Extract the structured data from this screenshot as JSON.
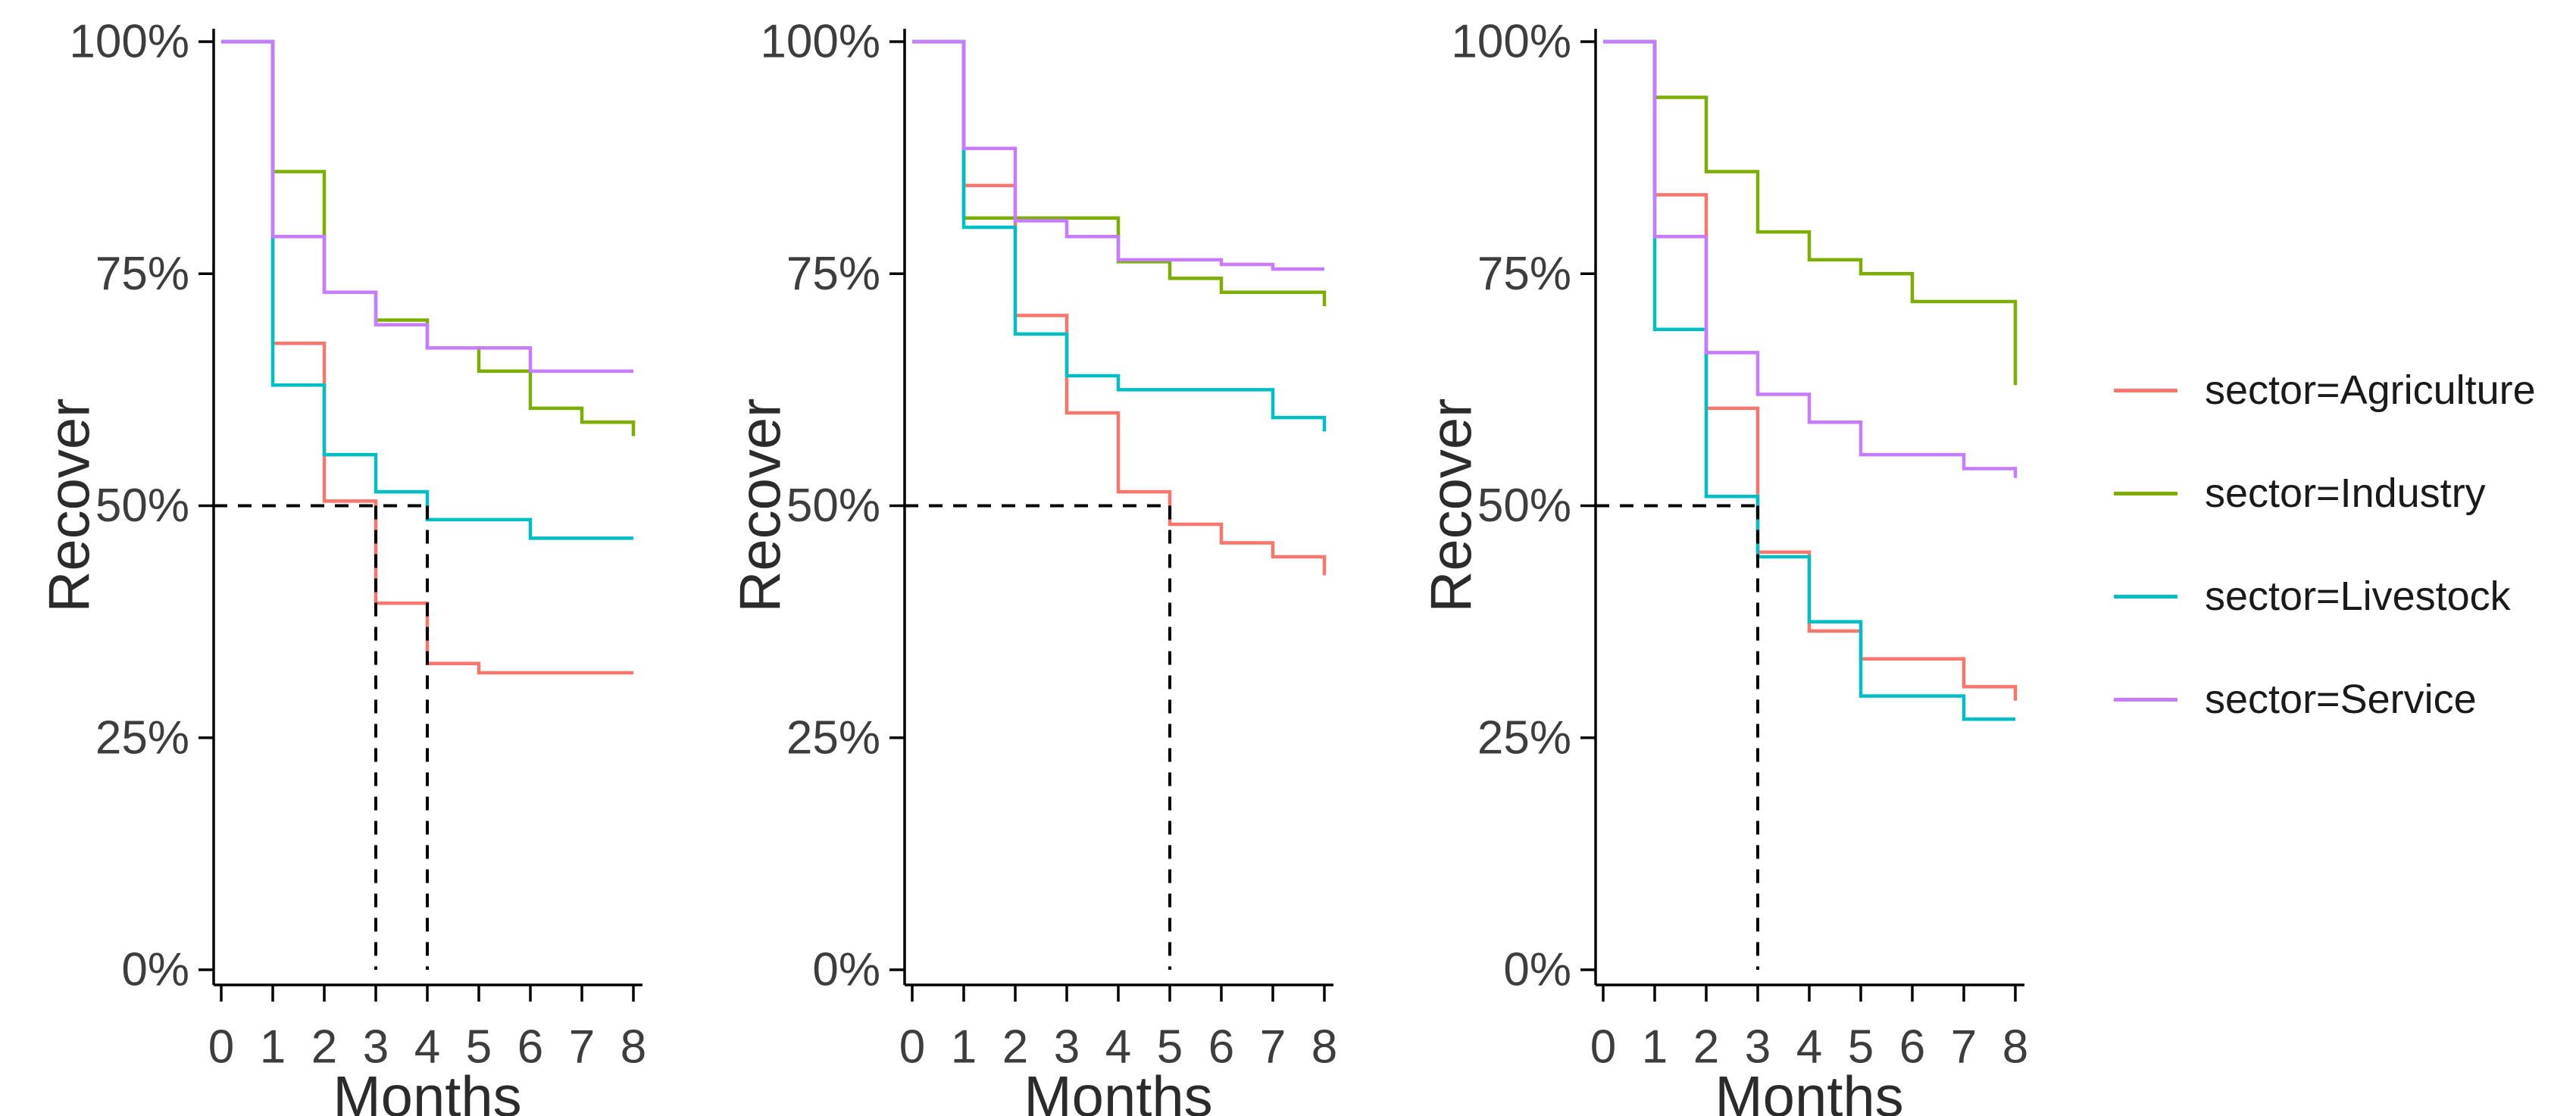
{
  "figure": {
    "background": "#ffffff",
    "xlabel": "Months",
    "ylabel": "Recover"
  },
  "axis": {
    "y_tick_labels": [
      "0%",
      "25%",
      "50%",
      "75%",
      "100%"
    ],
    "y_tick_values": [
      0,
      25,
      50,
      75,
      100
    ],
    "x_tick_labels": [
      "0",
      "1",
      "2",
      "3",
      "4",
      "5",
      "6",
      "7",
      "8"
    ],
    "x_tick_values": [
      0,
      1,
      2,
      3,
      4,
      5,
      6,
      7,
      8
    ],
    "text_color": "#3d3d3d",
    "axis_color": "#000000"
  },
  "legend": {
    "position": "right",
    "items": [
      {
        "label": "sector=Agriculture",
        "color": "#F8766D"
      },
      {
        "label": "sector=Industry",
        "color": "#7CAE00"
      },
      {
        "label": "sector=Livestock",
        "color": "#00BFC4"
      },
      {
        "label": "sector=Service",
        "color": "#C77CFF"
      }
    ]
  },
  "guide_style": {
    "color": "#000000",
    "pattern": "dashed",
    "meaning": "median (50%) crossing guides"
  },
  "chart_data": [
    {
      "type": "line",
      "subtype": "kaplan-meier-step",
      "panel": 1,
      "xlabel": "Months",
      "ylabel": "Recover",
      "x_months": [
        0,
        1,
        2,
        3,
        4,
        5,
        6,
        7,
        8
      ],
      "xlim": [
        0,
        8
      ],
      "ylim": [
        0,
        100
      ],
      "grid": false,
      "series": [
        {
          "name": "sector=Agriculture",
          "color": "#F8766D",
          "values_pct": [
            100,
            67.5,
            50.5,
            39.5,
            33,
            32,
            32,
            32,
            32
          ]
        },
        {
          "name": "sector=Industry",
          "color": "#7CAE00",
          "values_pct": [
            100,
            86,
            73,
            70,
            67,
            64.5,
            60.5,
            59,
            57.5
          ]
        },
        {
          "name": "sector=Livestock",
          "color": "#00BFC4",
          "values_pct": [
            100,
            63,
            55.5,
            51.5,
            48.5,
            48.5,
            46.5,
            46.5,
            46.5
          ]
        },
        {
          "name": "sector=Service",
          "color": "#C77CFF",
          "values_pct": [
            100,
            79,
            73,
            69.5,
            67,
            67,
            64.5,
            64.5,
            64.5
          ]
        }
      ],
      "median_guides": {
        "y_pct": 50,
        "h_line_from_x": 0,
        "h_line_to_x": 4,
        "v_lines_at_x": [
          3,
          4
        ]
      }
    },
    {
      "type": "line",
      "subtype": "kaplan-meier-step",
      "panel": 2,
      "xlabel": "Months",
      "ylabel": "Recover",
      "x_months": [
        0,
        1,
        2,
        3,
        4,
        5,
        6,
        7,
        8
      ],
      "xlim": [
        0,
        8
      ],
      "ylim": [
        0,
        100
      ],
      "grid": false,
      "series": [
        {
          "name": "sector=Agriculture",
          "color": "#F8766D",
          "values_pct": [
            100,
            84.5,
            70.5,
            60,
            51.5,
            48,
            46,
            44.5,
            42.5
          ]
        },
        {
          "name": "sector=Industry",
          "color": "#7CAE00",
          "values_pct": [
            100,
            81,
            81,
            81,
            76.3,
            74.5,
            73,
            73,
            71.5
          ]
        },
        {
          "name": "sector=Livestock",
          "color": "#00BFC4",
          "values_pct": [
            100,
            80,
            68.5,
            64,
            62.5,
            62.5,
            62.5,
            59.5,
            58
          ]
        },
        {
          "name": "sector=Service",
          "color": "#C77CFF",
          "values_pct": [
            100,
            88.5,
            80.7,
            79,
            76.5,
            76.5,
            76,
            75.5,
            75.5
          ]
        }
      ],
      "median_guides": {
        "y_pct": 50,
        "h_line_from_x": 0,
        "h_line_to_x": 5,
        "v_lines_at_x": [
          5
        ]
      }
    },
    {
      "type": "line",
      "subtype": "kaplan-meier-step",
      "panel": 3,
      "xlabel": "Months",
      "ylabel": "Recover",
      "x_months": [
        0,
        1,
        2,
        3,
        4,
        5,
        6,
        7,
        8
      ],
      "xlim": [
        0,
        8
      ],
      "ylim": [
        0,
        100
      ],
      "grid": false,
      "series": [
        {
          "name": "sector=Agriculture",
          "color": "#F8766D",
          "values_pct": [
            100,
            83.5,
            60.5,
            45,
            36.5,
            33.5,
            33.5,
            30.5,
            29
          ]
        },
        {
          "name": "sector=Industry",
          "color": "#7CAE00",
          "values_pct": [
            100,
            94,
            86,
            79.5,
            76.5,
            75,
            72,
            72,
            63
          ]
        },
        {
          "name": "sector=Livestock",
          "color": "#00BFC4",
          "values_pct": [
            100,
            69,
            51,
            44.5,
            37.5,
            29.5,
            29.5,
            27,
            27
          ]
        },
        {
          "name": "sector=Service",
          "color": "#C77CFF",
          "values_pct": [
            100,
            79,
            66.5,
            62,
            59,
            55.5,
            55.5,
            54,
            53
          ]
        }
      ],
      "median_guides": {
        "y_pct": 50,
        "h_line_from_x": 0,
        "h_line_to_x": 3,
        "v_lines_at_x": [
          3
        ]
      }
    }
  ]
}
